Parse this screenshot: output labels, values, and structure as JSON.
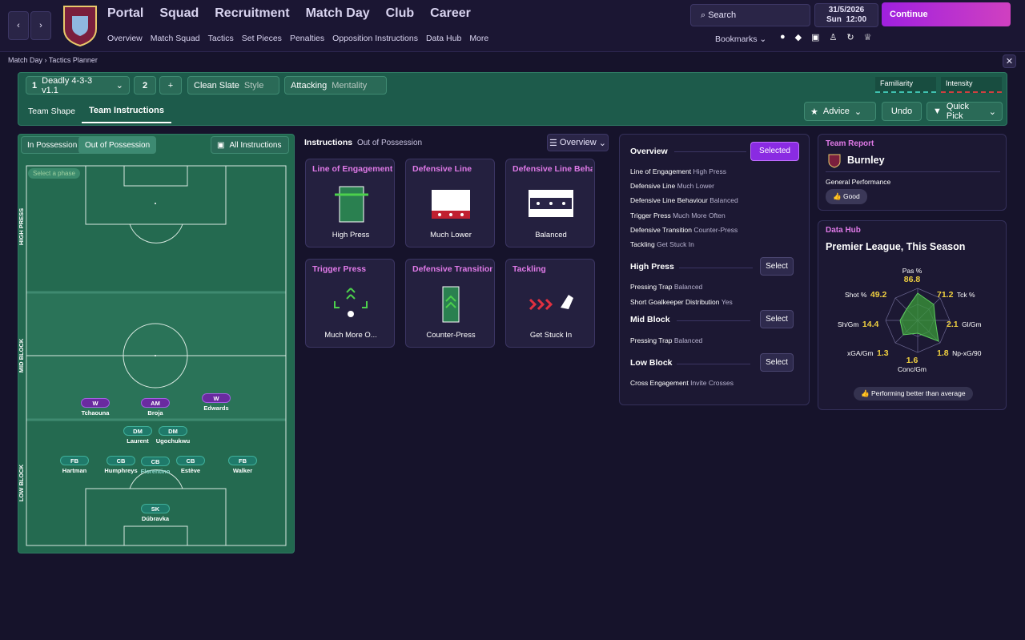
{
  "nav": {
    "menus": [
      "Portal",
      "Squad",
      "Recruitment",
      "Match Day",
      "Club",
      "Career"
    ],
    "submenu": [
      "Overview",
      "Match Squad",
      "Tactics",
      "Set Pieces",
      "Penalties",
      "Opposition Instructions",
      "Data Hub",
      "More"
    ],
    "search": "Search",
    "date": "31/5/2026",
    "day": "Sun",
    "time": "12:00",
    "continue": "Continue",
    "bookmarks": "Bookmarks"
  },
  "breadcrumb": [
    "Match Day",
    "Tactics Planner"
  ],
  "toolbar": {
    "tactic_number": "1",
    "tactic": "Deadly 4-3-3 v1.1",
    "slot": "2",
    "add": "+",
    "style_value": "Clean Slate",
    "style_label": "Style",
    "mentality_value": "Attacking",
    "mentality_label": "Mentality",
    "familiarity": "Familiarity",
    "intensity": "Intensity"
  },
  "tabs": [
    "Team Shape",
    "Team Instructions"
  ],
  "actions": [
    "Advice",
    "Undo",
    "Quick Pick"
  ],
  "pitch": {
    "tabs": [
      "In Possession",
      "Out of Possession"
    ],
    "all_instructions": "All Instructions",
    "phase_hint": "Select a phase",
    "zones": [
      "HIGH PRESS",
      "MID BLOCK",
      "LOW BLOCK"
    ],
    "players": [
      {
        "role": "W",
        "name": "Tchaouna"
      },
      {
        "role": "AM",
        "name": "Broja"
      },
      {
        "role": "W",
        "name": "Edwards"
      },
      {
        "role": "DM",
        "name": "Laurent"
      },
      {
        "role": "DM",
        "name": "Ugochukwu"
      },
      {
        "role": "FB",
        "name": "Hartman"
      },
      {
        "role": "CB",
        "name": "Humphreys"
      },
      {
        "role": "CB",
        "name": "Florentino"
      },
      {
        "role": "CB",
        "name": "Estève"
      },
      {
        "role": "FB",
        "name": "Walker"
      },
      {
        "role": "SK",
        "name": "Dúbravka"
      }
    ]
  },
  "instructions": {
    "title": "Instructions",
    "subtitle": "Out of Possession",
    "view": "Overview",
    "cards": [
      {
        "title": "Line of Engagement",
        "value": "High Press"
      },
      {
        "title": "Defensive Line",
        "value": "Much Lower"
      },
      {
        "title": "Defensive Line Behaviour",
        "value": "Balanced"
      },
      {
        "title": "Trigger Press",
        "value": "Much More O..."
      },
      {
        "title": "Defensive Transition",
        "value": "Counter-Press"
      },
      {
        "title": "Tackling",
        "value": "Get Stuck In"
      }
    ]
  },
  "overview": {
    "title": "Overview",
    "button": "Selected",
    "items": [
      {
        "label": "Line of Engagement",
        "value": "High Press"
      },
      {
        "label": "Defensive Line",
        "value": "Much Lower"
      },
      {
        "label": "Defensive Line Behaviour",
        "value": "Balanced"
      },
      {
        "label": "Trigger Press",
        "value": "Much More Often"
      },
      {
        "label": "Defensive Transition",
        "value": "Counter-Press"
      },
      {
        "label": "Tackling",
        "value": "Get Stuck In"
      }
    ],
    "sections": [
      {
        "title": "High Press",
        "button": "Select",
        "items": [
          {
            "label": "Pressing Trap",
            "value": "Balanced"
          },
          {
            "label": "Short Goalkeeper Distribution",
            "value": "Yes"
          }
        ]
      },
      {
        "title": "Mid Block",
        "button": "Select",
        "items": [
          {
            "label": "Pressing Trap",
            "value": "Balanced"
          }
        ]
      },
      {
        "title": "Low Block",
        "button": "Select",
        "items": [
          {
            "label": "Cross Engagement",
            "value": "Invite Crosses"
          }
        ]
      }
    ]
  },
  "team_report": {
    "title": "Team Report",
    "team": "Burnley",
    "label": "General Performance",
    "rating": "Good"
  },
  "data_hub": {
    "title": "Data Hub",
    "subtitle": "Premier League, This Season",
    "stats": [
      {
        "label": "Pas %",
        "value": 86.8
      },
      {
        "label": "Tck %",
        "value": 71.2
      },
      {
        "label": "Gl/Gm",
        "value": 2.1
      },
      {
        "label": "Np-xG/90",
        "value": 1.8
      },
      {
        "label": "Conc/Gm",
        "value": 1.6
      },
      {
        "label": "xGA/Gm",
        "value": 1.3
      },
      {
        "label": "Sh/Gm",
        "value": 14.4
      },
      {
        "label": "Shot %",
        "value": 49.2
      }
    ],
    "summary": "Performing better than average"
  }
}
